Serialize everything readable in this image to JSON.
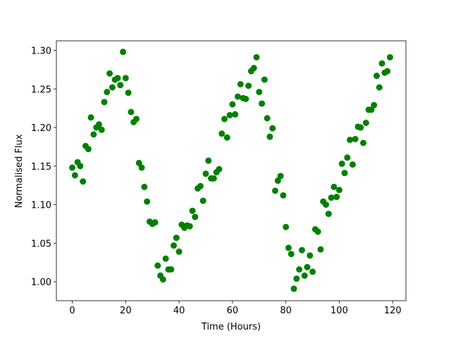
{
  "chart_data": {
    "type": "scatter",
    "x_label": "Time (Hours)",
    "y_label": "Normalised Flux",
    "color": "#008000",
    "x": [
      0,
      1,
      2,
      3,
      4,
      5,
      6,
      7,
      8,
      9,
      10,
      11,
      12,
      13,
      14,
      15,
      16,
      17,
      18,
      19,
      20,
      21,
      22,
      23,
      24,
      25,
      26,
      27,
      28,
      29,
      30,
      31,
      32,
      33,
      34,
      35,
      36,
      37,
      38,
      39,
      40,
      41,
      42,
      43,
      44,
      45,
      46,
      47,
      48,
      49,
      50,
      51,
      52,
      53,
      54,
      55,
      56,
      57,
      58,
      59,
      60,
      61,
      62,
      63,
      64,
      65,
      66,
      67,
      68,
      69,
      70,
      71,
      72,
      73,
      74,
      75,
      76,
      77,
      78,
      79,
      80,
      81,
      82,
      83,
      84,
      85,
      86,
      87,
      88,
      89,
      90,
      91,
      92,
      93,
      94,
      95,
      96,
      97,
      98,
      99,
      100,
      101,
      102,
      103,
      104,
      105,
      106,
      107,
      108,
      109,
      110,
      111,
      112,
      113,
      114,
      115,
      116,
      117,
      118,
      119
    ],
    "values": [
      1.148,
      1.138,
      1.155,
      1.15,
      1.13,
      1.176,
      1.172,
      1.213,
      1.191,
      1.2,
      1.204,
      1.197,
      1.233,
      1.246,
      1.27,
      1.252,
      1.262,
      1.264,
      1.255,
      1.298,
      1.264,
      1.245,
      1.22,
      1.207,
      1.211,
      1.154,
      1.148,
      1.123,
      1.104,
      1.078,
      1.075,
      1.077,
      1.021,
      1.008,
      1.003,
      1.03,
      1.016,
      1.016,
      1.047,
      1.057,
      1.039,
      1.074,
      1.07,
      1.073,
      1.072,
      1.092,
      1.084,
      1.121,
      1.124,
      1.105,
      1.14,
      1.157,
      1.134,
      1.134,
      1.142,
      1.146,
      1.192,
      1.211,
      1.187,
      1.216,
      1.23,
      1.217,
      1.24,
      1.256,
      1.238,
      1.237,
      1.254,
      1.273,
      1.277,
      1.291,
      1.246,
      1.231,
      1.262,
      1.212,
      1.188,
      1.199,
      1.118,
      1.131,
      1.137,
      1.112,
      1.071,
      1.044,
      1.036,
      0.991,
      1.004,
      1.016,
      1.041,
      1.008,
      1.019,
      1.034,
      1.013,
      1.068,
      1.065,
      1.042,
      1.104,
      1.1,
      1.088,
      1.109,
      1.123,
      1.11,
      1.119,
      1.153,
      1.141,
      1.161,
      1.184,
      1.152,
      1.185,
      1.201,
      1.2,
      1.18,
      1.206,
      1.223,
      1.223,
      1.229,
      1.267,
      1.252,
      1.283,
      1.271,
      1.273,
      1.291
    ],
    "xlim": [
      -5.95,
      124.95
    ],
    "ylim": [
      0.9755,
      1.3123
    ],
    "xticks": [
      0,
      20,
      40,
      60,
      80,
      100,
      120
    ],
    "yticks": [
      {
        "value": 1.0,
        "label": "1.00"
      },
      {
        "value": 1.05,
        "label": "1.05"
      },
      {
        "value": 1.1,
        "label": "1.10"
      },
      {
        "value": 1.15,
        "label": "1.15"
      },
      {
        "value": 1.2,
        "label": "1.20"
      },
      {
        "value": 1.25,
        "label": "1.25"
      },
      {
        "value": 1.3,
        "label": "1.30"
      }
    ]
  }
}
